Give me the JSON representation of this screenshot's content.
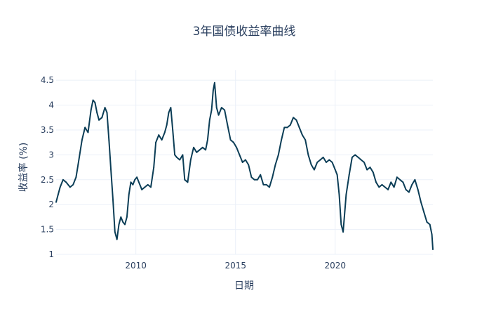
{
  "chart_data": {
    "type": "line",
    "title": "3年国债收益率曲线",
    "xlabel": "日期",
    "ylabel": "收益率 (%)",
    "xlim": [
      2006.0,
      2024.9
    ],
    "ylim": [
      1.0,
      4.7
    ],
    "x_ticks": [
      {
        "value": 2010,
        "label": "2010"
      },
      {
        "value": 2015,
        "label": "2015"
      },
      {
        "value": 2020,
        "label": "2020"
      }
    ],
    "y_ticks": [
      {
        "value": 1,
        "label": "1"
      },
      {
        "value": 1.5,
        "label": "1.5"
      },
      {
        "value": 2,
        "label": "2"
      },
      {
        "value": 2.5,
        "label": "2.5"
      },
      {
        "value": 3,
        "label": "3"
      },
      {
        "value": 3.5,
        "label": "3.5"
      },
      {
        "value": 4,
        "label": "4"
      },
      {
        "value": 4.5,
        "label": "4.5"
      }
    ],
    "grid": true,
    "line_color": "#0b3d56",
    "series": [
      {
        "x": [
          2006.0,
          2006.1,
          2006.2,
          2006.35,
          2006.5,
          2006.7,
          2006.85,
          2007.0,
          2007.1,
          2007.3,
          2007.45,
          2007.6,
          2007.75,
          2007.85,
          2007.95,
          2008.05,
          2008.15,
          2008.3,
          2008.45,
          2008.55,
          2008.65,
          2008.75,
          2008.85,
          2008.95,
          2009.05,
          2009.15,
          2009.25,
          2009.35,
          2009.45,
          2009.55,
          2009.65,
          2009.75,
          2009.85,
          2009.95,
          2010.05,
          2010.15,
          2010.3,
          2010.45,
          2010.6,
          2010.75,
          2010.9,
          2011.0,
          2011.15,
          2011.3,
          2011.45,
          2011.55,
          2011.65,
          2011.75,
          2011.85,
          2011.95,
          2012.05,
          2012.2,
          2012.35,
          2012.45,
          2012.6,
          2012.75,
          2012.9,
          2013.05,
          2013.2,
          2013.35,
          2013.5,
          2013.6,
          2013.7,
          2013.8,
          2013.88,
          2013.95,
          2014.05,
          2014.15,
          2014.3,
          2014.45,
          2014.6,
          2014.75,
          2014.9,
          2015.05,
          2015.2,
          2015.35,
          2015.5,
          2015.65,
          2015.8,
          2015.95,
          2016.1,
          2016.25,
          2016.4,
          2016.55,
          2016.7,
          2016.85,
          2017.0,
          2017.15,
          2017.3,
          2017.45,
          2017.6,
          2017.75,
          2017.9,
          2018.05,
          2018.2,
          2018.35,
          2018.5,
          2018.65,
          2018.8,
          2018.95,
          2019.1,
          2019.25,
          2019.4,
          2019.55,
          2019.7,
          2019.85,
          2020.0,
          2020.1,
          2020.2,
          2020.3,
          2020.4,
          2020.55,
          2020.7,
          2020.85,
          2021.0,
          2021.15,
          2021.3,
          2021.45,
          2021.6,
          2021.75,
          2021.9,
          2022.05,
          2022.2,
          2022.35,
          2022.5,
          2022.65,
          2022.8,
          2022.95,
          2023.1,
          2023.25,
          2023.4,
          2023.55,
          2023.7,
          2023.85,
          2024.0,
          2024.15,
          2024.3,
          2024.45,
          2024.6,
          2024.75,
          2024.85,
          2024.9
        ],
        "y": [
          2.05,
          2.2,
          2.35,
          2.5,
          2.45,
          2.35,
          2.4,
          2.55,
          2.8,
          3.3,
          3.55,
          3.45,
          3.9,
          4.1,
          4.05,
          3.85,
          3.7,
          3.75,
          3.95,
          3.85,
          3.3,
          2.7,
          2.1,
          1.45,
          1.3,
          1.6,
          1.75,
          1.65,
          1.6,
          1.75,
          2.2,
          2.45,
          2.4,
          2.5,
          2.55,
          2.45,
          2.3,
          2.35,
          2.4,
          2.35,
          2.75,
          3.25,
          3.4,
          3.3,
          3.45,
          3.6,
          3.85,
          3.95,
          3.5,
          3.0,
          2.95,
          2.9,
          3.0,
          2.5,
          2.45,
          2.9,
          3.15,
          3.05,
          3.1,
          3.15,
          3.1,
          3.3,
          3.7,
          3.9,
          4.3,
          4.45,
          3.95,
          3.8,
          3.95,
          3.9,
          3.6,
          3.3,
          3.25,
          3.15,
          3.0,
          2.85,
          2.9,
          2.8,
          2.55,
          2.5,
          2.5,
          2.6,
          2.4,
          2.4,
          2.35,
          2.55,
          2.8,
          3.0,
          3.3,
          3.55,
          3.55,
          3.6,
          3.75,
          3.7,
          3.55,
          3.4,
          3.3,
          3.0,
          2.8,
          2.7,
          2.85,
          2.9,
          2.95,
          2.85,
          2.9,
          2.85,
          2.7,
          2.6,
          2.2,
          1.6,
          1.45,
          2.2,
          2.6,
          2.95,
          3.0,
          2.95,
          2.9,
          2.85,
          2.7,
          2.75,
          2.65,
          2.45,
          2.35,
          2.4,
          2.35,
          2.3,
          2.45,
          2.35,
          2.55,
          2.5,
          2.45,
          2.3,
          2.25,
          2.4,
          2.5,
          2.3,
          2.05,
          1.85,
          1.65,
          1.6,
          1.4,
          1.1
        ]
      }
    ]
  }
}
